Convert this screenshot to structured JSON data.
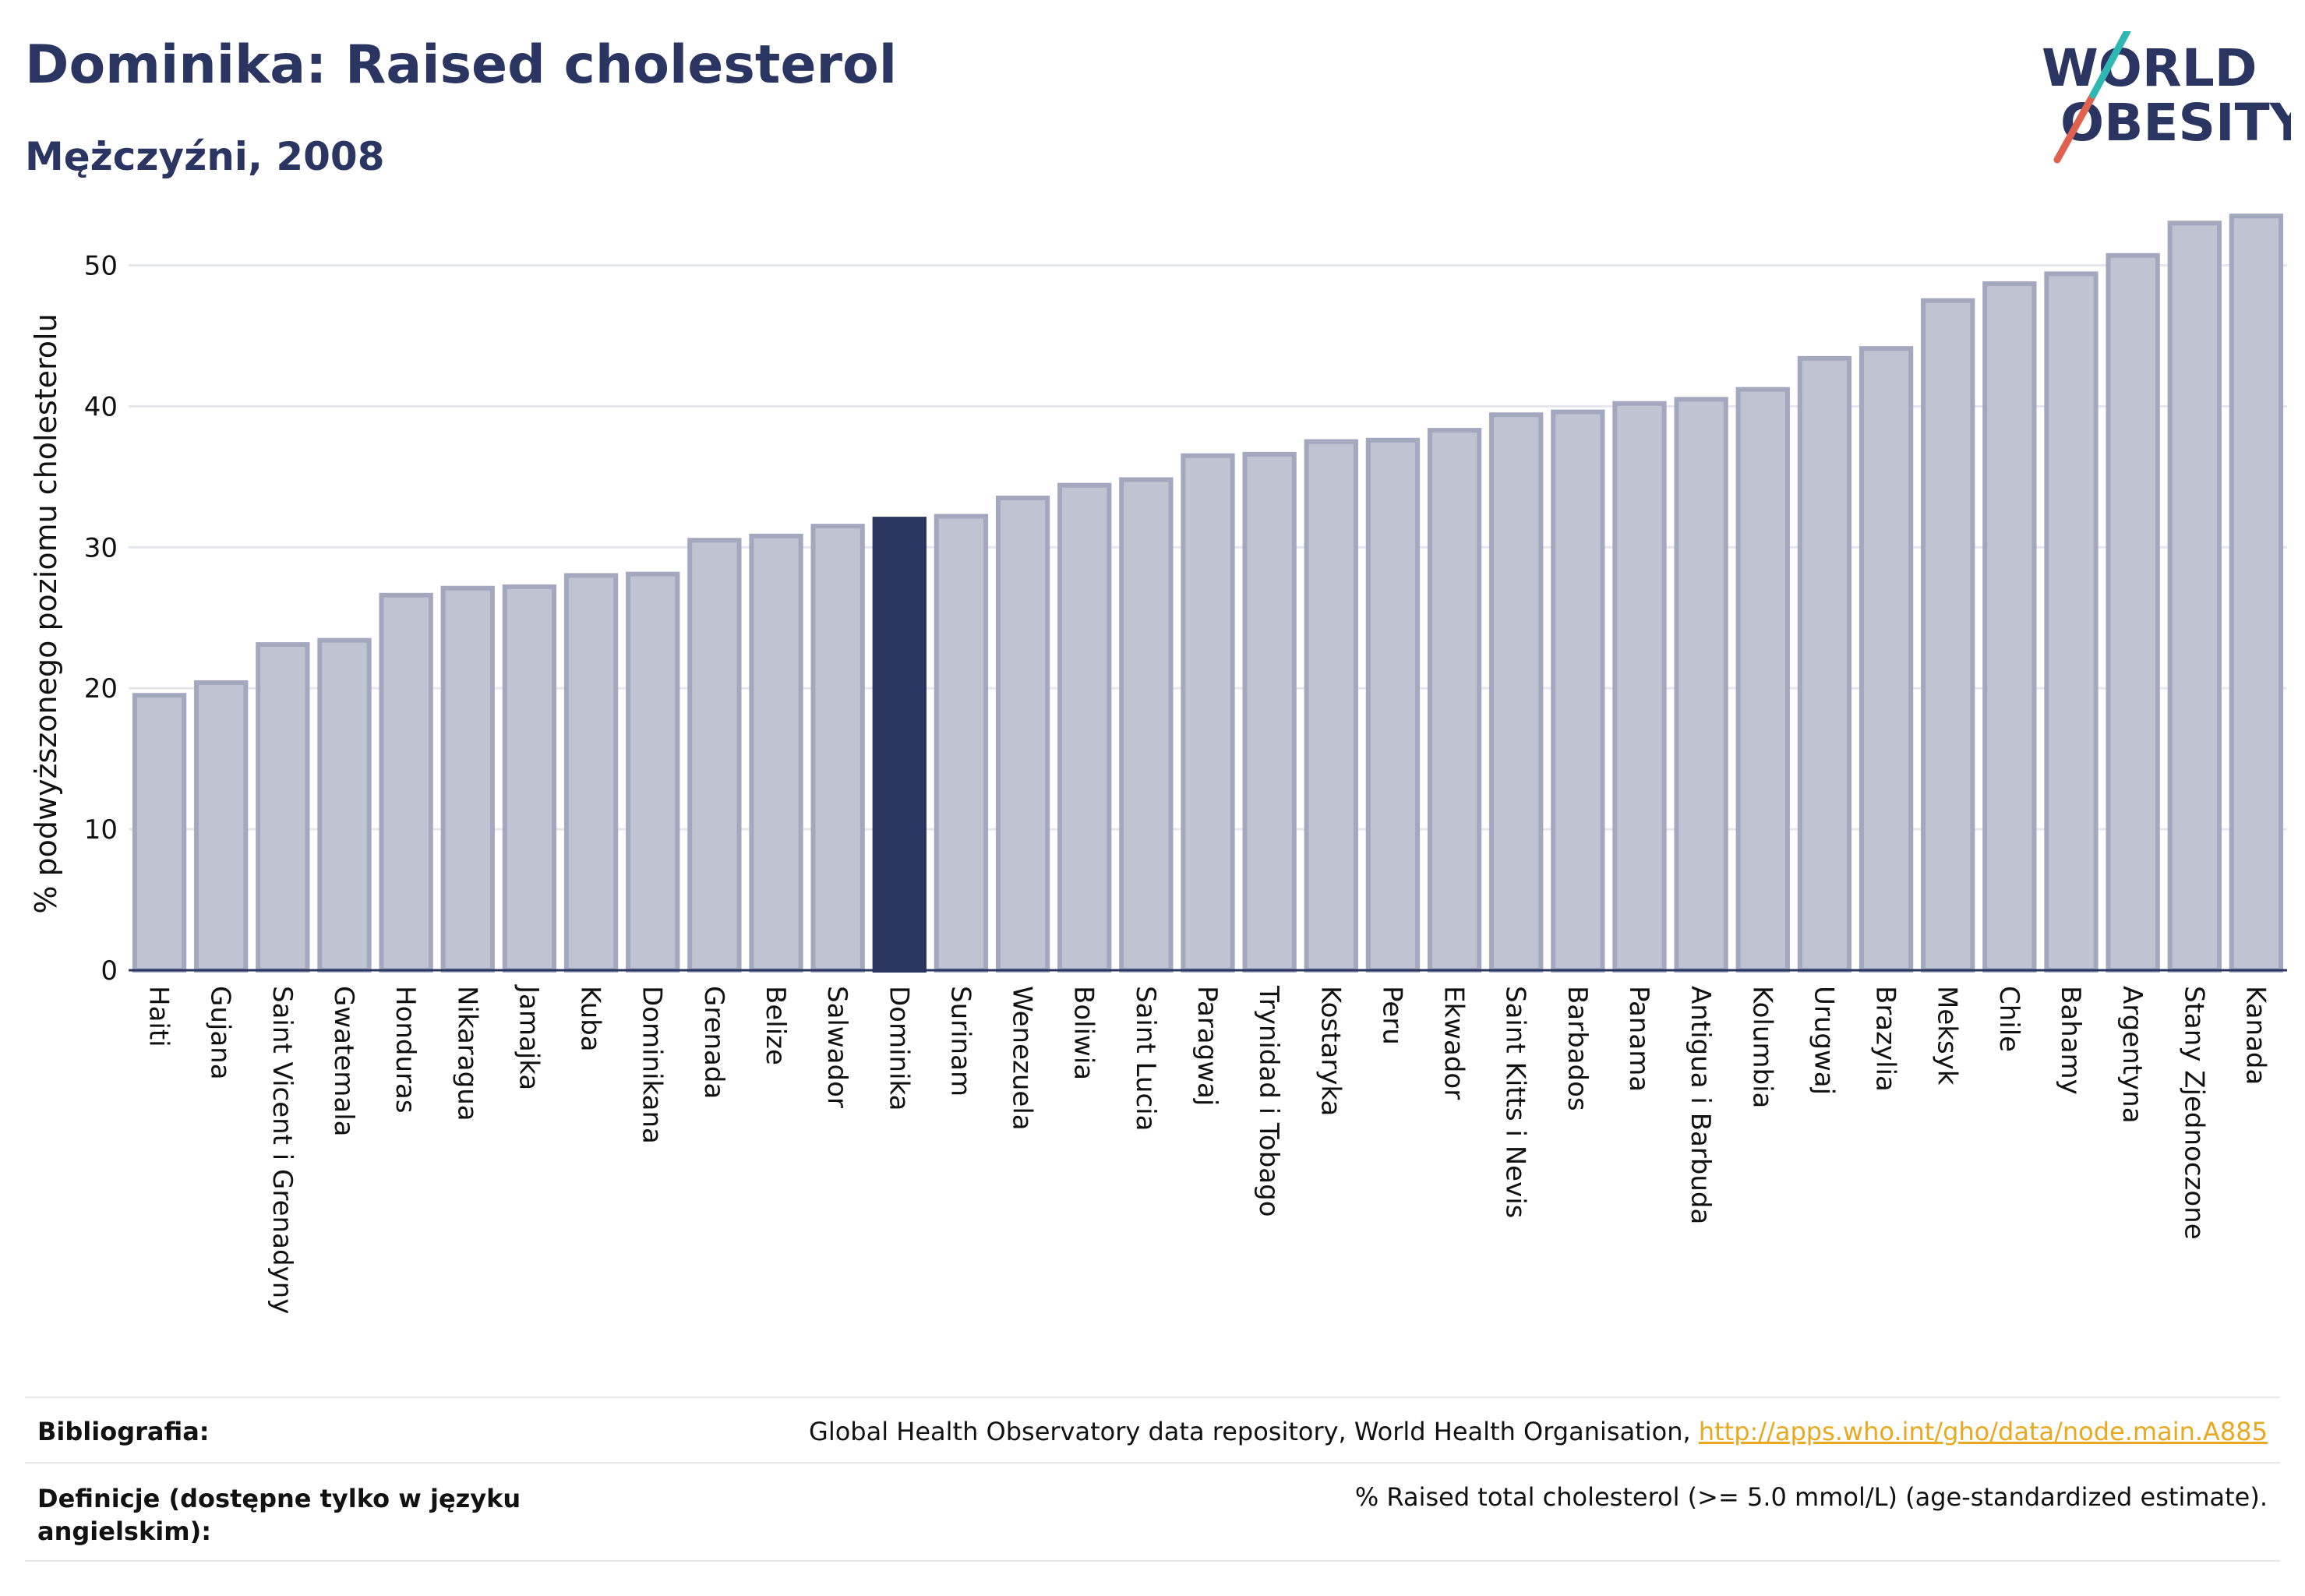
{
  "header": {
    "title": "Dominika: Raised cholesterol",
    "subtitle": "Mężczyźni, 2008"
  },
  "logo": {
    "line1": "WORLD",
    "line2": "OBESITY",
    "text_color": "#2a3561",
    "slash_colors": [
      "#e0614f",
      "#2fb7b3"
    ]
  },
  "chart_data": {
    "type": "bar",
    "ylabel": "% podwyższonego poziomu cholesterolu",
    "xlabel": "",
    "ylim": [
      0,
      55
    ],
    "yticks": [
      0,
      10,
      20,
      30,
      40,
      50
    ],
    "grid": true,
    "highlight": "Dominika",
    "colors": {
      "bar": "#c0c3d1",
      "bar_edge": "#a3a8bf",
      "highlight": "#2a3561"
    },
    "categories": [
      "Haiti",
      "Gujana",
      "Saint Vicent i Grenadyny",
      "Gwatemala",
      "Honduras",
      "Nikaragua",
      "Jamajka",
      "Kuba",
      "Dominikana",
      "Grenada",
      "Belize",
      "Salwador",
      "Dominika",
      "Surinam",
      "Wenezuela",
      "Boliwia",
      "Saint Lucia",
      "Paragwaj",
      "Trynidad i Tobago",
      "Kostaryka",
      "Peru",
      "Ekwador",
      "Saint Kitts i Nevis",
      "Barbados",
      "Panama",
      "Antigua i Barbuda",
      "Kolumbia",
      "Urugwaj",
      "Brazylia",
      "Meksyk",
      "Chile",
      "Bahamy",
      "Argentyna",
      "Stany Zjednoczone",
      "Kanada"
    ],
    "values": [
      19.5,
      20.4,
      23.1,
      23.4,
      26.6,
      27.1,
      27.2,
      28.0,
      28.1,
      30.5,
      30.8,
      31.5,
      32.0,
      32.2,
      33.5,
      34.4,
      34.8,
      36.5,
      36.6,
      37.5,
      37.6,
      38.3,
      39.4,
      39.6,
      40.2,
      40.5,
      41.2,
      43.4,
      44.1,
      47.5,
      48.7,
      49.4,
      50.7,
      53.0,
      53.5
    ]
  },
  "footer": {
    "bibliography_label": "Bibliografia:",
    "bibliography_text": "Global Health Observatory data repository, World Health Organisation, ",
    "bibliography_link": "http://apps.who.int/gho/data/node.main.A885",
    "definitions_label": "Definicje (dostępne tylko w języku angielskim):",
    "definitions_text": "% Raised total cholesterol (>= 5.0 mmol/L) (age-standardized estimate)."
  }
}
